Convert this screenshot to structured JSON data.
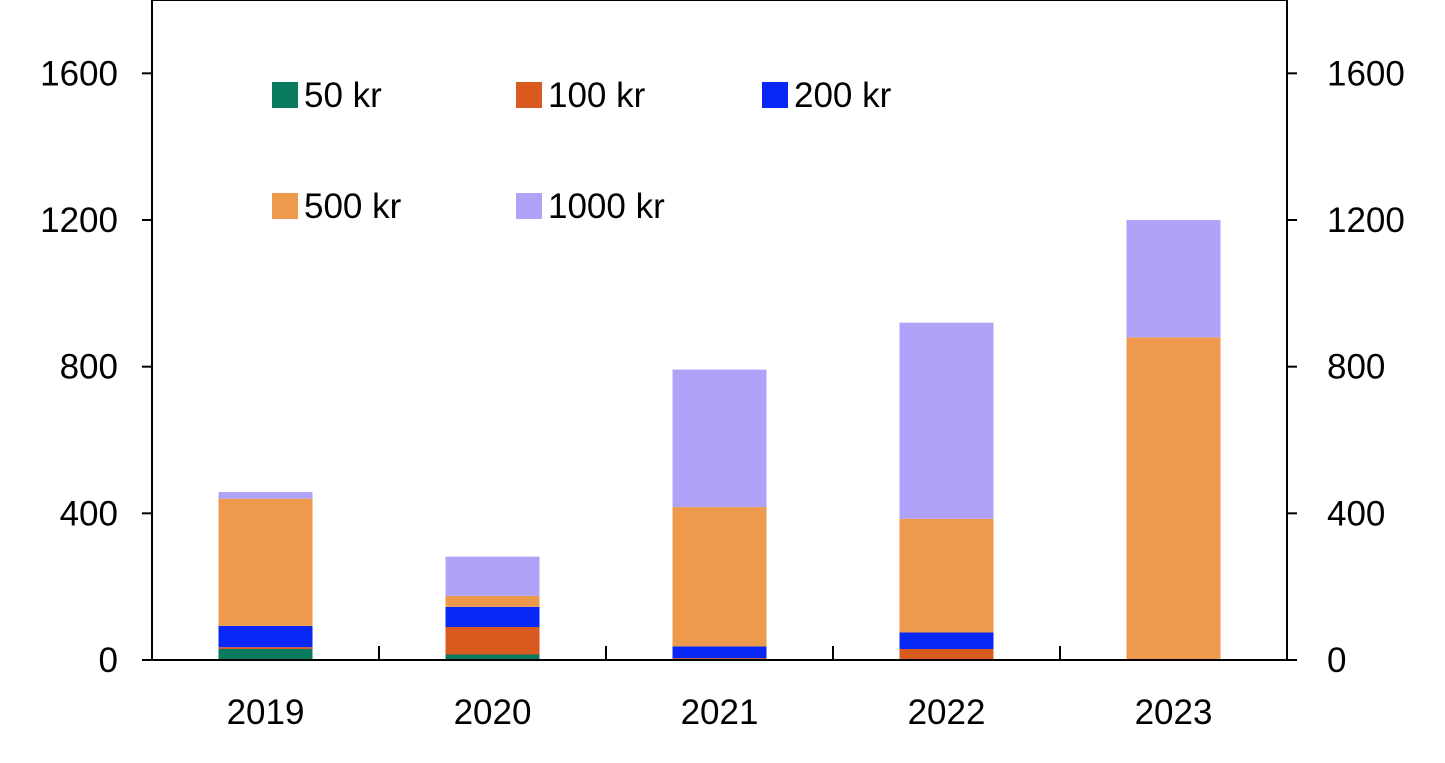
{
  "chart_data": {
    "type": "bar",
    "stacked": true,
    "categories": [
      "2019",
      "2020",
      "2021",
      "2022",
      "2023"
    ],
    "series": [
      {
        "name": "50 kr",
        "color": "#0a7a5f",
        "values": [
          30,
          15,
          0,
          0,
          0
        ]
      },
      {
        "name": "100 kr",
        "color": "#d95a1e",
        "values": [
          5,
          75,
          5,
          30,
          0
        ]
      },
      {
        "name": "200 kr",
        "color": "#0a28f5",
        "values": [
          58,
          55,
          32,
          45,
          0
        ]
      },
      {
        "name": "500 kr",
        "color": "#ee9a4d",
        "values": [
          347,
          30,
          380,
          310,
          880
        ]
      },
      {
        "name": "1000 kr",
        "color": "#b0a2f8",
        "values": [
          18,
          107,
          375,
          535,
          320
        ]
      }
    ],
    "y_ticks": [
      "0",
      "400",
      "800",
      "1200",
      "1600"
    ],
    "y_right_ticks": [
      "0",
      "400",
      "800",
      "1200",
      "1600"
    ],
    "ylim": [
      0,
      1800
    ],
    "grid": false,
    "legend_position": "top-left inside plot",
    "title": "",
    "xlabel": "",
    "ylabel": ""
  }
}
